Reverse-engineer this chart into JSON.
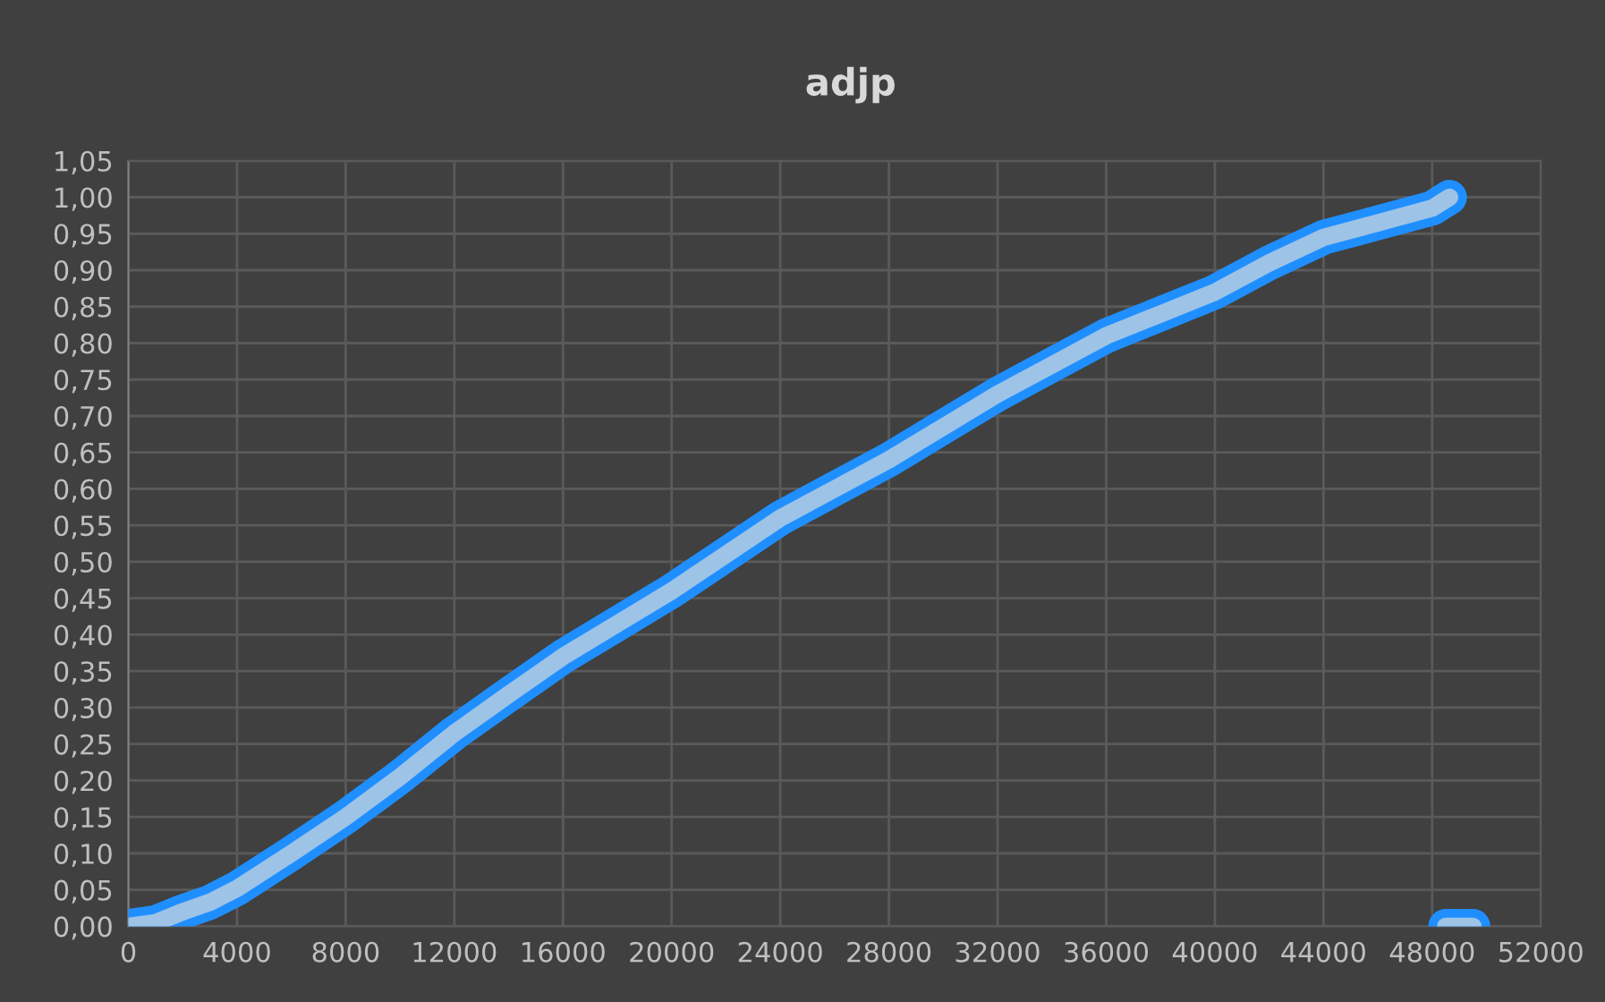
{
  "chart_data": {
    "type": "line",
    "title": "adjp",
    "series": [
      {
        "color": "#1f8fff",
        "x": [
          0,
          1000,
          2000,
          3000,
          4000,
          6000,
          8000,
          10000,
          12000,
          14000,
          16000,
          18000,
          20000,
          22000,
          24000,
          26000,
          28000,
          30000,
          32000,
          34000,
          36000,
          38000,
          40000,
          42000,
          44000,
          46000,
          48000,
          48640
        ],
        "values": [
          0.0,
          0.005,
          0.02,
          0.033,
          0.052,
          0.1,
          0.15,
          0.205,
          0.265,
          0.318,
          0.37,
          0.415,
          0.46,
          0.51,
          0.56,
          0.6,
          0.64,
          0.685,
          0.73,
          0.77,
          0.81,
          0.84,
          0.87,
          0.91,
          0.945,
          0.965,
          0.985,
          1.0
        ]
      },
      {
        "color": "#1f8fff",
        "x": [
          48500,
          49000,
          49500
        ],
        "values": [
          0.0,
          0.0,
          0.0
        ]
      }
    ],
    "xlim": [
      0,
      52000
    ],
    "xticks": [
      0,
      4000,
      8000,
      12000,
      16000,
      20000,
      24000,
      28000,
      32000,
      36000,
      40000,
      44000,
      48000,
      52000
    ],
    "ylim": [
      0,
      1.05
    ],
    "yticks": [
      {
        "value": 0,
        "label": "0,00"
      },
      {
        "value": 0.05,
        "label": "0,05"
      },
      {
        "value": 0.1,
        "label": "0,10"
      },
      {
        "value": 0.15,
        "label": "0,15"
      },
      {
        "value": 0.2,
        "label": "0,20"
      },
      {
        "value": 0.25,
        "label": "0,25"
      },
      {
        "value": 0.3,
        "label": "0,30"
      },
      {
        "value": 0.35,
        "label": "0,35"
      },
      {
        "value": 0.4,
        "label": "0,40"
      },
      {
        "value": 0.45,
        "label": "0,45"
      },
      {
        "value": 0.5,
        "label": "0,50"
      },
      {
        "value": 0.55,
        "label": "0,55"
      },
      {
        "value": 0.6,
        "label": "0,60"
      },
      {
        "value": 0.65,
        "label": "0,65"
      },
      {
        "value": 0.7,
        "label": "0,70"
      },
      {
        "value": 0.75,
        "label": "0,75"
      },
      {
        "value": 0.8,
        "label": "0,80"
      },
      {
        "value": 0.85,
        "label": "0,85"
      },
      {
        "value": 0.9,
        "label": "0,90"
      },
      {
        "value": 0.95,
        "label": "0,95"
      },
      {
        "value": 1.0,
        "label": "1,00"
      },
      {
        "value": 1.05,
        "label": "1,05"
      }
    ],
    "grid": true,
    "marker": "none",
    "line_style": "solid"
  }
}
